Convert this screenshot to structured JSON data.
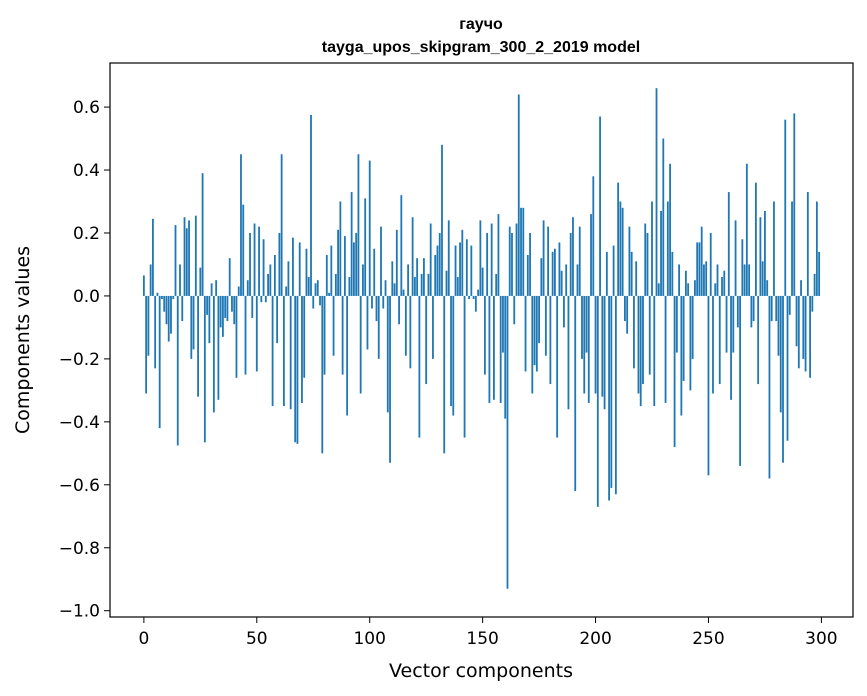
{
  "chart_data": {
    "type": "bar",
    "title": "гаучо",
    "subtitle": "tayga_upos_skipgram_300_2_2019 model",
    "xlabel": "Vector components",
    "ylabel": "Components values",
    "xlim": [
      -15,
      314
    ],
    "ylim": [
      -1.02,
      0.74
    ],
    "xticks": [
      0,
      50,
      100,
      150,
      200,
      250,
      300
    ],
    "xtick_labels": [
      "0",
      "50",
      "100",
      "150",
      "200",
      "250",
      "300"
    ],
    "yticks": [
      -1.0,
      -0.8,
      -0.6,
      -0.4,
      -0.2,
      0.0,
      0.2,
      0.4,
      0.6
    ],
    "ytick_labels": [
      "−1.0",
      "−0.8",
      "−0.6",
      "−0.4",
      "−0.2",
      "0.0",
      "0.2",
      "0.4",
      "0.6"
    ],
    "grid": false,
    "bar_color": "#1f77b4",
    "x": [
      0,
      1,
      2,
      3,
      4,
      5,
      6,
      7,
      8,
      9,
      10,
      11,
      12,
      13,
      14,
      15,
      16,
      17,
      18,
      19,
      20,
      21,
      22,
      23,
      24,
      25,
      26,
      27,
      28,
      29,
      30,
      31,
      32,
      33,
      34,
      35,
      36,
      37,
      38,
      39,
      40,
      41,
      42,
      43,
      44,
      45,
      46,
      47,
      48,
      49,
      50,
      51,
      52,
      53,
      54,
      55,
      56,
      57,
      58,
      59,
      60,
      61,
      62,
      63,
      64,
      65,
      66,
      67,
      68,
      69,
      70,
      71,
      72,
      73,
      74,
      75,
      76,
      77,
      78,
      79,
      80,
      81,
      82,
      83,
      84,
      85,
      86,
      87,
      88,
      89,
      90,
      91,
      92,
      93,
      94,
      95,
      96,
      97,
      98,
      99,
      100,
      101,
      102,
      103,
      104,
      105,
      106,
      107,
      108,
      109,
      110,
      111,
      112,
      113,
      114,
      115,
      116,
      117,
      118,
      119,
      120,
      121,
      122,
      123,
      124,
      125,
      126,
      127,
      128,
      129,
      130,
      131,
      132,
      133,
      134,
      135,
      136,
      137,
      138,
      139,
      140,
      141,
      142,
      143,
      144,
      145,
      146,
      147,
      148,
      149,
      150,
      151,
      152,
      153,
      154,
      155,
      156,
      157,
      158,
      159,
      160,
      161,
      162,
      163,
      164,
      165,
      166,
      167,
      168,
      169,
      170,
      171,
      172,
      173,
      174,
      175,
      176,
      177,
      178,
      179,
      180,
      181,
      182,
      183,
      184,
      185,
      186,
      187,
      188,
      189,
      190,
      191,
      192,
      193,
      194,
      195,
      196,
      197,
      198,
      199,
      200,
      201,
      202,
      203,
      204,
      205,
      206,
      207,
      208,
      209,
      210,
      211,
      212,
      213,
      214,
      215,
      216,
      217,
      218,
      219,
      220,
      221,
      222,
      223,
      224,
      225,
      226,
      227,
      228,
      229,
      230,
      231,
      232,
      233,
      234,
      235,
      236,
      237,
      238,
      239,
      240,
      241,
      242,
      243,
      244,
      245,
      246,
      247,
      248,
      249,
      250,
      251,
      252,
      253,
      254,
      255,
      256,
      257,
      258,
      259,
      260,
      261,
      262,
      263,
      264,
      265,
      266,
      267,
      268,
      269,
      270,
      271,
      272,
      273,
      274,
      275,
      276,
      277,
      278,
      279,
      280,
      281,
      282,
      283,
      284,
      285,
      286,
      287,
      288,
      289,
      290,
      291,
      292,
      293,
      294,
      295,
      296,
      297,
      298,
      299
    ],
    "values": [
      0.065,
      -0.31,
      -0.19,
      0.1,
      0.245,
      -0.23,
      0.01,
      -0.42,
      -0.01,
      -0.05,
      -0.09,
      -0.145,
      -0.12,
      -0.01,
      0.225,
      -0.475,
      0.1,
      -0.08,
      0.25,
      0.215,
      0.24,
      -0.2,
      -0.17,
      0.255,
      -0.32,
      0.09,
      0.39,
      -0.465,
      -0.06,
      -0.15,
      0.04,
      -0.37,
      0.05,
      -0.33,
      -0.1,
      -0.13,
      -0.07,
      -0.08,
      0.12,
      -0.05,
      -0.09,
      -0.26,
      0.03,
      0.45,
      0.29,
      -0.25,
      0.05,
      0.2,
      -0.07,
      0.23,
      -0.24,
      0.22,
      -0.02,
      0.18,
      -0.02,
      0.07,
      0.1,
      -0.35,
      0.13,
      -0.15,
      0.2,
      0.45,
      -0.35,
      0.03,
      0.11,
      -0.36,
      0.185,
      -0.465,
      -0.47,
      0.17,
      -0.34,
      -0.26,
      0.15,
      0.06,
      0.575,
      -0.04,
      0.04,
      0.05,
      -0.03,
      -0.5,
      -0.25,
      0.13,
      0.01,
      0.16,
      -0.19,
      0.07,
      0.21,
      0.3,
      -0.25,
      0.19,
      -0.38,
      0.06,
      0.33,
      0.17,
      0.2,
      0.45,
      -0.31,
      0.1,
      0.31,
      -0.17,
      0.43,
      -0.04,
      0.15,
      -0.08,
      -0.2,
      0.22,
      -0.04,
      0.05,
      -0.37,
      -0.53,
      0.11,
      0.04,
      0.21,
      -0.09,
      0.32,
      0.02,
      -0.19,
      0.1,
      -0.23,
      0.25,
      0.06,
      0.12,
      -0.45,
      0.07,
      0.12,
      -0.28,
      0.07,
      0.23,
      -0.2,
      0.13,
      0.16,
      0.2,
      0.48,
      -0.5,
      0.08,
      0.24,
      -0.35,
      -0.38,
      0.16,
      0.06,
      0.17,
      0.21,
      -0.45,
      0.18,
      -0.01,
      0.16,
      -0.01,
      -0.05,
      0.02,
      0.24,
      0.09,
      -0.25,
      0.2,
      -0.34,
      0.23,
      -0.33,
      0.07,
      0.26,
      -0.34,
      -0.18,
      -0.39,
      -0.93,
      0.22,
      0.2,
      -0.09,
      0.23,
      0.64,
      0.28,
      0.28,
      -0.24,
      0.13,
      0.2,
      -0.31,
      -0.22,
      -0.24,
      -0.15,
      0.12,
      0.24,
      -0.19,
      0.22,
      -0.28,
      0.14,
      0.15,
      -0.45,
      0.17,
      0.08,
      -0.1,
      0.1,
      -0.36,
      0.2,
      0.25,
      -0.62,
      0.1,
      0.22,
      -0.2,
      -0.31,
      -0.18,
      -0.34,
      0.26,
      0.38,
      -0.31,
      -0.67,
      0.57,
      -0.32,
      -0.36,
      0.14,
      -0.65,
      -0.61,
      0.16,
      -0.63,
      0.36,
      0.3,
      0.28,
      -0.08,
      -0.12,
      0.22,
      0.14,
      -0.23,
      0.11,
      -0.31,
      -0.35,
      -0.28,
      0.23,
      0.2,
      -0.25,
      0.3,
      -0.35,
      0.66,
      0.04,
      0.27,
      0.5,
      -0.34,
      0.3,
      0.42,
      0.14,
      -0.48,
      -0.18,
      0.1,
      -0.38,
      -0.27,
      0.08,
      0.04,
      -0.3,
      -0.2,
      0.05,
      0.17,
      0.17,
      0.22,
      0.1,
      0.11,
      -0.57,
      0.2,
      -0.31,
      0.04,
      0.1,
      -0.28,
      0.06,
      0.08,
      -0.18,
      0.33,
      -0.33,
      -0.18,
      0.24,
      -0.1,
      -0.54,
      0.18,
      0.1,
      0.42,
      0.1,
      -0.1,
      -0.08,
      0.36,
      -0.28,
      0.25,
      0.11,
      0.27,
      0.05,
      -0.58,
      -0.08,
      0.3,
      -0.08,
      -0.19,
      -0.37,
      -0.53,
      0.56,
      -0.46,
      -0.06,
      0.3,
      0.58,
      -0.16,
      -0.23,
      0.05,
      -0.2,
      -0.24,
      0.33,
      -0.26,
      -0.05,
      0.07,
      0.3,
      0.14
    ]
  }
}
